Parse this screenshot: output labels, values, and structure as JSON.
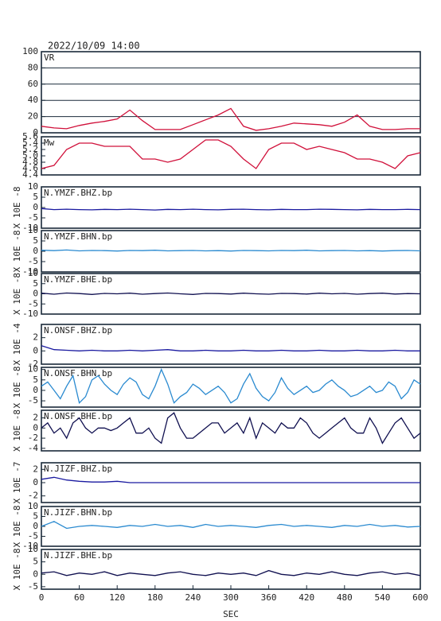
{
  "header": {
    "title": "2022/10/09  14:00"
  },
  "chart_data": [
    {
      "type": "line",
      "title": "VR",
      "x": [
        0,
        20,
        40,
        60,
        80,
        100,
        120,
        140,
        160,
        180,
        200,
        220,
        240,
        260,
        280,
        300,
        320,
        340,
        360,
        380,
        400,
        420,
        440,
        460,
        480,
        500,
        520,
        540,
        560,
        580,
        600
      ],
      "values": [
        8,
        6,
        5,
        9,
        12,
        14,
        17,
        28,
        15,
        4,
        4,
        4,
        10,
        16,
        22,
        30,
        8,
        3,
        5,
        8,
        12,
        11,
        10,
        8,
        13,
        22,
        8,
        4,
        4,
        5,
        5
      ],
      "color": "#d0103a",
      "xlim": [
        0,
        600
      ],
      "ylim": [
        0,
        100
      ],
      "yticks": [
        0,
        20,
        40,
        60,
        80,
        100
      ],
      "grid": true
    },
    {
      "type": "line",
      "title": "Mw",
      "x": [
        0,
        20,
        40,
        60,
        80,
        100,
        120,
        140,
        160,
        180,
        200,
        220,
        240,
        260,
        280,
        300,
        320,
        340,
        360,
        380,
        400,
        420,
        440,
        460,
        480,
        500,
        520,
        540,
        560,
        580,
        600
      ],
      "values": [
        4.6,
        4.7,
        5.2,
        5.4,
        5.4,
        5.3,
        5.3,
        5.3,
        4.9,
        4.9,
        4.8,
        4.9,
        5.2,
        5.5,
        5.5,
        5.3,
        4.9,
        4.6,
        5.2,
        5.4,
        5.4,
        5.2,
        5.3,
        5.2,
        5.1,
        4.9,
        4.9,
        4.8,
        4.6,
        5.0,
        5.1
      ],
      "color": "#d0103a",
      "xlim": [
        0,
        600
      ],
      "ylim": [
        4.4,
        5.6
      ],
      "yticks": [
        {
          "value": 4.4,
          "label": "4.4"
        },
        {
          "value": 4.6,
          "label": "4.6"
        },
        {
          "value": 4.8,
          "label": "4.8"
        },
        {
          "value": 5,
          "label": "5.0"
        },
        {
          "value": 5.2,
          "label": "5.2"
        },
        {
          "value": 5.4,
          "label": "5.4"
        },
        {
          "value": 5.6,
          "label": "5.6"
        }
      ],
      "grid": false
    },
    {
      "type": "line",
      "title": "N.YMZF.BHZ.bp",
      "ylabel": "X 10E -8",
      "x": [
        0,
        20,
        40,
        60,
        80,
        100,
        120,
        140,
        160,
        180,
        200,
        220,
        240,
        260,
        280,
        300,
        320,
        340,
        360,
        380,
        400,
        420,
        440,
        460,
        480,
        500,
        520,
        540,
        560,
        580,
        600
      ],
      "values": [
        -0.5,
        -1,
        -0.8,
        -1,
        -1.1,
        -0.9,
        -1,
        -0.8,
        -1,
        -1.2,
        -0.9,
        -1,
        -0.8,
        -1,
        -1.1,
        -0.9,
        -0.8,
        -1,
        -1.1,
        -0.9,
        -1,
        -1,
        -0.8,
        -0.9,
        -1,
        -1.1,
        -0.9,
        -1,
        -1,
        -0.9,
        -1
      ],
      "color": "#1a1aa0",
      "xlim": [
        0,
        600
      ],
      "ylim": [
        -10,
        10
      ],
      "yticks": [
        -10,
        -5,
        0,
        5,
        10
      ],
      "grid": false
    },
    {
      "type": "line",
      "title": "N.YMZF.BHN.bp",
      "ylabel": "X 10E -8",
      "x": [
        0,
        20,
        40,
        60,
        80,
        100,
        120,
        140,
        160,
        180,
        200,
        220,
        240,
        260,
        280,
        300,
        320,
        340,
        360,
        380,
        400,
        420,
        440,
        460,
        480,
        500,
        520,
        540,
        560,
        580,
        600
      ],
      "values": [
        0.5,
        0.3,
        0.6,
        0.2,
        0.4,
        0.3,
        0.1,
        0.4,
        0.3,
        0.5,
        0.2,
        0.3,
        0.4,
        0.2,
        0.3,
        0.1,
        0.4,
        0.3,
        0.2,
        0.4,
        0.3,
        0.5,
        0.2,
        0.3,
        0.4,
        0.2,
        0.3,
        0.1,
        0.3,
        0.4,
        0.2
      ],
      "color": "#2a8ad0",
      "xlim": [
        0,
        600
      ],
      "ylim": [
        -10,
        10
      ],
      "yticks": [
        -10,
        -5,
        0,
        5,
        10
      ],
      "grid": false
    },
    {
      "type": "line",
      "title": "N.YMZF.BHE.bp",
      "ylabel": "X 10E -8",
      "x": [
        0,
        20,
        40,
        60,
        80,
        100,
        120,
        140,
        160,
        180,
        200,
        220,
        240,
        260,
        280,
        300,
        320,
        340,
        360,
        380,
        400,
        420,
        440,
        460,
        480,
        500,
        520,
        540,
        560,
        580,
        600
      ],
      "values": [
        0.3,
        -0.2,
        0.4,
        0.1,
        -0.3,
        0.2,
        0,
        0.3,
        -0.2,
        0.1,
        0.4,
        0,
        -0.3,
        0.2,
        0.1,
        -0.1,
        0.3,
        0,
        -0.2,
        0.2,
        0.1,
        -0.1,
        0.3,
        0,
        0.2,
        -0.2,
        0.1,
        0.3,
        -0.1,
        0.1,
        0
      ],
      "color": "#101050",
      "xlim": [
        0,
        600
      ],
      "ylim": [
        -10,
        10
      ],
      "yticks": [
        -10,
        -5,
        0,
        5,
        10
      ],
      "grid": false
    },
    {
      "type": "line",
      "title": "N.ONSF.BHZ.bp",
      "ylabel": "X 10E -4",
      "x": [
        0,
        20,
        40,
        60,
        80,
        100,
        120,
        140,
        160,
        180,
        200,
        220,
        240,
        260,
        280,
        300,
        320,
        340,
        360,
        380,
        400,
        420,
        440,
        460,
        480,
        500,
        520,
        540,
        560,
        580,
        600
      ],
      "values": [
        0.8,
        0.2,
        0.1,
        0,
        0.1,
        0,
        0,
        0.1,
        0,
        0.1,
        0.2,
        0,
        0,
        0.1,
        0,
        0,
        0.1,
        0,
        0,
        0.1,
        0,
        0,
        0.1,
        0,
        0,
        0.1,
        0,
        0,
        0.1,
        0,
        0
      ],
      "color": "#1a1aa0",
      "xlim": [
        0,
        600
      ],
      "ylim": [
        -2,
        4
      ],
      "yticks": [
        -2,
        0,
        2
      ],
      "grid": false
    },
    {
      "type": "line",
      "title": "N.ONSF.BHN.bp",
      "ylabel": "X 10E -8",
      "x": [
        0,
        10,
        20,
        30,
        40,
        50,
        60,
        70,
        80,
        90,
        100,
        110,
        120,
        130,
        140,
        150,
        160,
        170,
        180,
        190,
        200,
        210,
        220,
        230,
        240,
        250,
        260,
        270,
        280,
        290,
        300,
        310,
        320,
        330,
        340,
        350,
        360,
        370,
        380,
        390,
        400,
        410,
        420,
        430,
        440,
        450,
        460,
        470,
        480,
        490,
        500,
        510,
        520,
        530,
        540,
        550,
        560,
        570,
        580,
        590,
        600
      ],
      "values": [
        2,
        4,
        0,
        -4,
        2,
        7,
        -6,
        -3,
        5,
        7,
        3,
        0,
        -2,
        3,
        6,
        4,
        -2,
        -4,
        2,
        10,
        3,
        -6,
        -3,
        -1,
        3,
        1,
        -2,
        0,
        2,
        -1,
        -6,
        -4,
        3,
        8,
        1,
        -3,
        -5,
        -1,
        6,
        1,
        -2,
        0,
        2,
        -1,
        0,
        3,
        5,
        2,
        0,
        -3,
        -2,
        0,
        2,
        -1,
        0,
        4,
        2,
        -4,
        -1,
        5,
        3
      ],
      "color": "#2a8ad0",
      "xlim": [
        0,
        600
      ],
      "ylim": [
        -8,
        11
      ],
      "yticks": [
        -5,
        0,
        5,
        10
      ],
      "grid": false
    },
    {
      "type": "line",
      "title": "N.ONSF.BHE.bp",
      "ylabel": "X 10E -8",
      "x": [
        0,
        10,
        20,
        30,
        40,
        50,
        60,
        70,
        80,
        90,
        100,
        110,
        120,
        130,
        140,
        150,
        160,
        170,
        180,
        190,
        200,
        210,
        220,
        230,
        240,
        250,
        260,
        270,
        280,
        290,
        300,
        310,
        320,
        330,
        340,
        350,
        360,
        370,
        380,
        390,
        400,
        410,
        420,
        430,
        440,
        450,
        460,
        470,
        480,
        490,
        500,
        510,
        520,
        530,
        540,
        550,
        560,
        570,
        580,
        590,
        600
      ],
      "values": [
        0,
        1,
        -1,
        0,
        -2,
        1,
        2,
        0,
        -1,
        0,
        0,
        -0.5,
        0,
        1,
        2,
        -1,
        -1,
        0,
        -2,
        -3,
        2,
        3,
        0,
        -2,
        -2,
        -1,
        0,
        1,
        1,
        -1,
        0,
        1,
        -1,
        2,
        -2,
        1,
        0,
        -1,
        1,
        0,
        0,
        2,
        1,
        -1,
        -2,
        -1,
        0,
        1,
        2,
        0,
        -1,
        -1,
        2,
        0,
        -3,
        -1,
        1,
        2,
        0,
        -2,
        -1
      ],
      "color": "#101050",
      "xlim": [
        0,
        600
      ],
      "ylim": [
        -4.5,
        3.5
      ],
      "yticks": [
        -4,
        -2,
        0,
        2
      ],
      "grid": false
    },
    {
      "type": "line",
      "title": "N.JIZF.BHZ.bp",
      "ylabel": "X 10E -7",
      "x": [
        0,
        20,
        40,
        60,
        80,
        100,
        120,
        140,
        160,
        180,
        200,
        220,
        240,
        260,
        280,
        300,
        320,
        340,
        360,
        380,
        400,
        420,
        440,
        460,
        480,
        500,
        520,
        540,
        560,
        580,
        600
      ],
      "values": [
        0.5,
        0.8,
        0.4,
        0.2,
        0.1,
        0.1,
        0.2,
        0,
        0,
        0,
        0,
        0,
        0,
        0,
        0,
        0,
        0,
        0,
        0,
        0,
        0,
        0,
        0,
        0,
        0,
        0,
        0,
        0,
        0,
        0,
        0
      ],
      "color": "#1a1aa0",
      "xlim": [
        0,
        600
      ],
      "ylim": [
        -3,
        3
      ],
      "yticks": [
        -2,
        0,
        2
      ],
      "grid": false
    },
    {
      "type": "line",
      "title": "N.JIZF.BHN.bp",
      "ylabel": "X 10E -8",
      "x": [
        0,
        20,
        40,
        60,
        80,
        100,
        120,
        140,
        160,
        180,
        200,
        220,
        240,
        260,
        280,
        300,
        320,
        340,
        360,
        380,
        400,
        420,
        440,
        460,
        480,
        500,
        520,
        540,
        560,
        580,
        600
      ],
      "values": [
        0,
        2.5,
        -1,
        0,
        0.5,
        0,
        -0.5,
        0.5,
        0,
        1,
        0,
        0.5,
        -0.5,
        1,
        0,
        0.5,
        0,
        -0.5,
        0.5,
        1,
        0,
        0.5,
        0,
        -0.5,
        0.5,
        0,
        1,
        0,
        0.5,
        -0.3,
        0
      ],
      "color": "#2a8ad0",
      "xlim": [
        0,
        600
      ],
      "ylim": [
        -10,
        10
      ],
      "yticks": [
        -10,
        -5,
        0,
        5,
        10
      ],
      "grid": false
    },
    {
      "type": "line",
      "title": "N.JIZF.BHE.bp",
      "ylabel": "X 10E -8",
      "x": [
        0,
        20,
        40,
        60,
        80,
        100,
        120,
        140,
        160,
        180,
        200,
        220,
        240,
        260,
        280,
        300,
        320,
        340,
        360,
        380,
        400,
        420,
        440,
        460,
        480,
        500,
        520,
        540,
        560,
        580,
        600
      ],
      "values": [
        0.5,
        1,
        -0.5,
        0.5,
        0,
        1,
        -0.5,
        0.5,
        0,
        -0.5,
        0.5,
        1,
        0,
        -0.5,
        0.5,
        0,
        0.5,
        -0.5,
        1.5,
        0,
        -0.5,
        0.5,
        0,
        1,
        0,
        -0.5,
        0.5,
        1,
        0,
        0.5,
        -0.5
      ],
      "color": "#101050",
      "xlim": [
        0,
        600
      ],
      "ylim": [
        -6,
        10
      ],
      "yticks": [
        -5,
        0,
        5,
        10
      ],
      "grid": false,
      "xticks": [
        0,
        60,
        120,
        180,
        240,
        300,
        360,
        420,
        480,
        540,
        600
      ],
      "xlabel": "SEC"
    }
  ]
}
